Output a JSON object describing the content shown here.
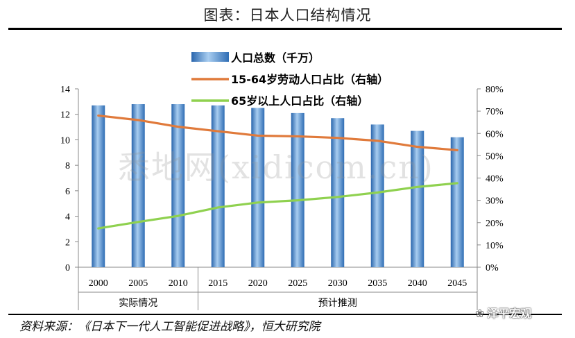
{
  "page": {
    "title": "图表：日本人口结构情况",
    "source": "资料来源：《日本下一代人工智能促进战略》，恒大研究院",
    "watermark": "悉地网(xidicom.cn)",
    "brand": "泽平宏观"
  },
  "colors": {
    "bar": "#3e7fc6",
    "bar_highlight": "#a8cdf0",
    "working_line": "#e07a3b",
    "elderly_line": "#8fd14f",
    "axis": "#888888"
  },
  "chart_data": {
    "type": "bar",
    "categories": [
      "2000",
      "2005",
      "2010",
      "2015",
      "2020",
      "2025",
      "2030",
      "2035",
      "2040",
      "2045"
    ],
    "groups": [
      {
        "label": "实际情况",
        "from": 0,
        "to": 2
      },
      {
        "label": "预计推测",
        "from": 3,
        "to": 9
      }
    ],
    "series": [
      {
        "name": "人口总数（千万）",
        "type": "bar",
        "axis": "left",
        "values": [
          12.7,
          12.8,
          12.8,
          12.7,
          12.5,
          12.1,
          11.7,
          11.2,
          10.7,
          10.2
        ]
      },
      {
        "name": "15-64岁劳动人口占比（右轴）",
        "type": "line",
        "axis": "right",
        "values": [
          68,
          66,
          63,
          61,
          59,
          58.7,
          58,
          56.7,
          54,
          52.5
        ]
      },
      {
        "name": "65岁以上人口占比（右轴）",
        "type": "line",
        "axis": "right",
        "values": [
          17.4,
          20.3,
          23,
          26.8,
          29,
          30,
          31.5,
          33.5,
          36,
          37.7
        ]
      }
    ],
    "y_left": {
      "min": 0,
      "max": 14,
      "ticks": [
        "0",
        "2",
        "4",
        "6",
        "8",
        "10",
        "12",
        "14"
      ]
    },
    "y_right": {
      "min": 0,
      "max": 80,
      "ticks": [
        "0%",
        "10%",
        "20%",
        "30%",
        "40%",
        "50%",
        "60%",
        "70%",
        "80%"
      ]
    },
    "legend_position": "top-center",
    "grid": false
  }
}
